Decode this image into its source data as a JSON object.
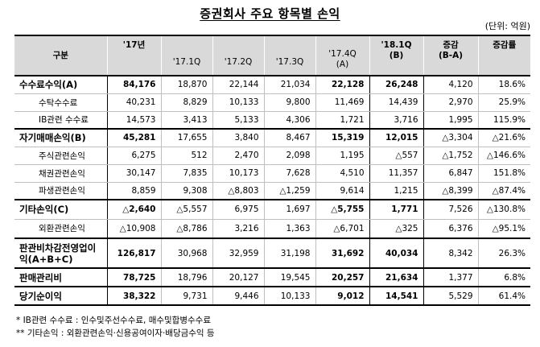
{
  "title": "증권회사 주요 항목별 손익",
  "unit": "(단위: 억원)",
  "header": {
    "label": "구분",
    "c1": "'17년",
    "c2": "'17.1Q",
    "c3": "'17.2Q",
    "c4": "'17.3Q",
    "c5_line1": "'17.4Q",
    "c5_line2": "(A)",
    "c6_line1": "'18.1Q",
    "c6_line2": "(B)",
    "c7_line1": "증감",
    "c7_line2": "(B-A)",
    "c8": "증감률"
  },
  "rows": [
    {
      "label": "수수료수익(A)",
      "values": [
        "84,176",
        "18,870",
        "22,144",
        "21,034",
        "22,128",
        "26,248",
        "4,120",
        "18.6%"
      ]
    },
    {
      "label": "수탁수수료",
      "values": [
        "40,231",
        "8,829",
        "10,133",
        "9,800",
        "11,469",
        "14,439",
        "2,970",
        "25.9%"
      ]
    },
    {
      "label": "IB관련 수수료",
      "values": [
        "14,573",
        "3,413",
        "5,133",
        "4,306",
        "1,721",
        "3,716",
        "1,995",
        "115.9%"
      ]
    },
    {
      "label": "자기매매손익(B)",
      "values": [
        "45,281",
        "17,655",
        "3,840",
        "8,467",
        "15,319",
        "12,015",
        "△3,304",
        "△21.6%"
      ]
    },
    {
      "label": "주식관련손익",
      "values": [
        "6,275",
        "512",
        "2,470",
        "2,098",
        "1,195",
        "△557",
        "△1,752",
        "△146.6%"
      ]
    },
    {
      "label": "채권관련손익",
      "values": [
        "30,147",
        "7,835",
        "10,173",
        "7,628",
        "4,510",
        "11,357",
        "6,847",
        "151.8%"
      ]
    },
    {
      "label": "파생관련손익",
      "values": [
        "8,859",
        "9,308",
        "△8,803",
        "△1,259",
        "9,614",
        "1,215",
        "△8,399",
        "△87.4%"
      ]
    },
    {
      "label": "기타손익(C)",
      "values": [
        "△2,640",
        "△5,557",
        "6,975",
        "1,697",
        "△5,755",
        "1,771",
        "7,526",
        "△130.8%"
      ]
    },
    {
      "label": "외환관련손익",
      "values": [
        "△10,908",
        "△8,786",
        "3,216",
        "1,363",
        "△6,701",
        "△325",
        "6,376",
        "△95.1%"
      ]
    },
    {
      "label": "판관비차감전영업이익(A+B+C)",
      "values": [
        "126,817",
        "30,968",
        "32,959",
        "31,198",
        "31,692",
        "40,034",
        "8,342",
        "26.3%"
      ]
    },
    {
      "label": "판매관리비",
      "values": [
        "78,725",
        "18,796",
        "20,127",
        "19,545",
        "20,257",
        "21,634",
        "1,377",
        "6.8%"
      ]
    },
    {
      "label": "당기순이익",
      "values": [
        "38,322",
        "9,731",
        "9,446",
        "10,133",
        "9,012",
        "14,541",
        "5,529",
        "61.4%"
      ]
    }
  ],
  "notes": [
    "*  IB관련 수수료 : 인수및주선수수료, 매수및합병수수료",
    "**  기타손익 : 외환관련손익·신용공여이자·배당금수익 등"
  ]
}
